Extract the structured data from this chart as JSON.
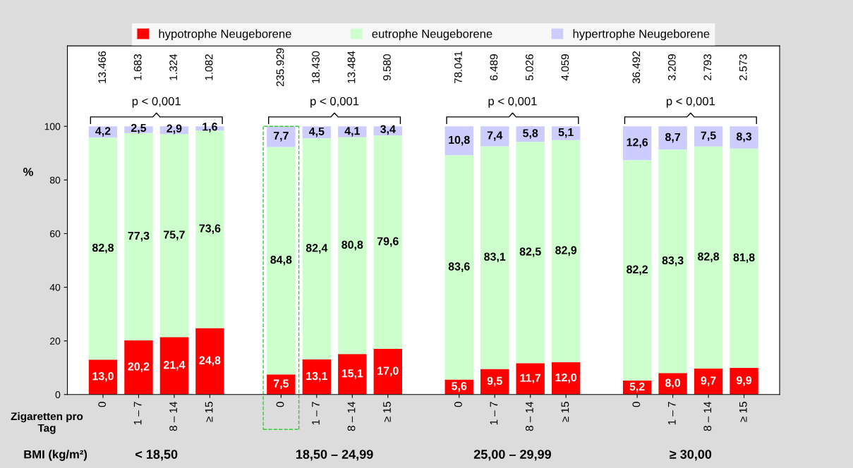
{
  "chart_data": {
    "type": "bar",
    "stacked": true,
    "ylabel": "%",
    "ylim": [
      0,
      130
    ],
    "yticks": [
      0,
      20,
      40,
      60,
      80,
      100
    ],
    "legend": "top",
    "grid": false,
    "categories": [
      "0",
      "1 – 7",
      "8 – 14",
      "≥ 15",
      null,
      "0",
      "1 – 7",
      "8 – 14",
      "≥ 15",
      null,
      "0",
      "1 – 7",
      "8 – 14",
      "≥ 15",
      null,
      "0",
      "1 – 7",
      "8 – 14",
      "≥ 15"
    ],
    "series": [
      {
        "name": "hypotrophe Neugeborene",
        "color": "#ff0000",
        "values": [
          13.0,
          20.2,
          21.4,
          24.8,
          null,
          7.5,
          13.1,
          15.1,
          17.0,
          null,
          5.6,
          9.5,
          11.7,
          12.0,
          null,
          5.2,
          8.0,
          9.7,
          9.9
        ],
        "value_labels": [
          "13,0",
          "20,2",
          "21,4",
          "24,8",
          null,
          "7,5",
          "13,1",
          "15,1",
          "17,0",
          null,
          "5,6",
          "9,5",
          "11,7",
          "12,0",
          null,
          "5,2",
          "8,0",
          "9,7",
          "9,9"
        ]
      },
      {
        "name": "eutrophe Neugeborene",
        "color": "#ccffcc",
        "values": [
          82.8,
          77.3,
          75.7,
          73.6,
          null,
          84.8,
          82.4,
          80.8,
          79.6,
          null,
          83.6,
          83.1,
          82.5,
          82.9,
          null,
          82.2,
          83.3,
          82.8,
          81.8
        ],
        "value_labels": [
          "82,8",
          "77,3",
          "75,7",
          "73,6",
          null,
          "84,8",
          "82,4",
          "80,8",
          "79,6",
          null,
          "83,6",
          "83,1",
          "82,5",
          "82,9",
          null,
          "82,2",
          "83,3",
          "82,8",
          "81,8"
        ]
      },
      {
        "name": "hypertrophe Neugeborene",
        "color": "#ccccff",
        "values": [
          4.2,
          2.5,
          2.9,
          1.6,
          null,
          7.7,
          4.5,
          4.1,
          3.4,
          null,
          10.8,
          7.4,
          5.8,
          5.1,
          null,
          12.6,
          8.7,
          7.5,
          8.3
        ],
        "value_labels": [
          "4,2",
          "2,5",
          "2,9",
          "1,6",
          null,
          "7,7",
          "4,5",
          "4,1",
          "3,4",
          null,
          "10,8",
          "7,4",
          "5,8",
          "5,1",
          null,
          "12,6",
          "8,7",
          "7,5",
          "8,3"
        ]
      }
    ],
    "annotations": [
      "Zigaretten pro Tag",
      "BMI (kg/m²)",
      "< 18,50",
      "18,50 – 24,99",
      "25,00 – 29,99",
      "≥ 30,00",
      "p < 0,001",
      "p < 0,001",
      "p < 0,001",
      "p < 0,001",
      "13.466",
      "1.683",
      "1.324",
      "1.082",
      "235.929",
      "18.430",
      "13.484",
      "9.580",
      "78.041",
      "6.489",
      "5.026",
      "4.059",
      "36.492",
      "3.209",
      "2.793",
      "2.573"
    ]
  }
}
